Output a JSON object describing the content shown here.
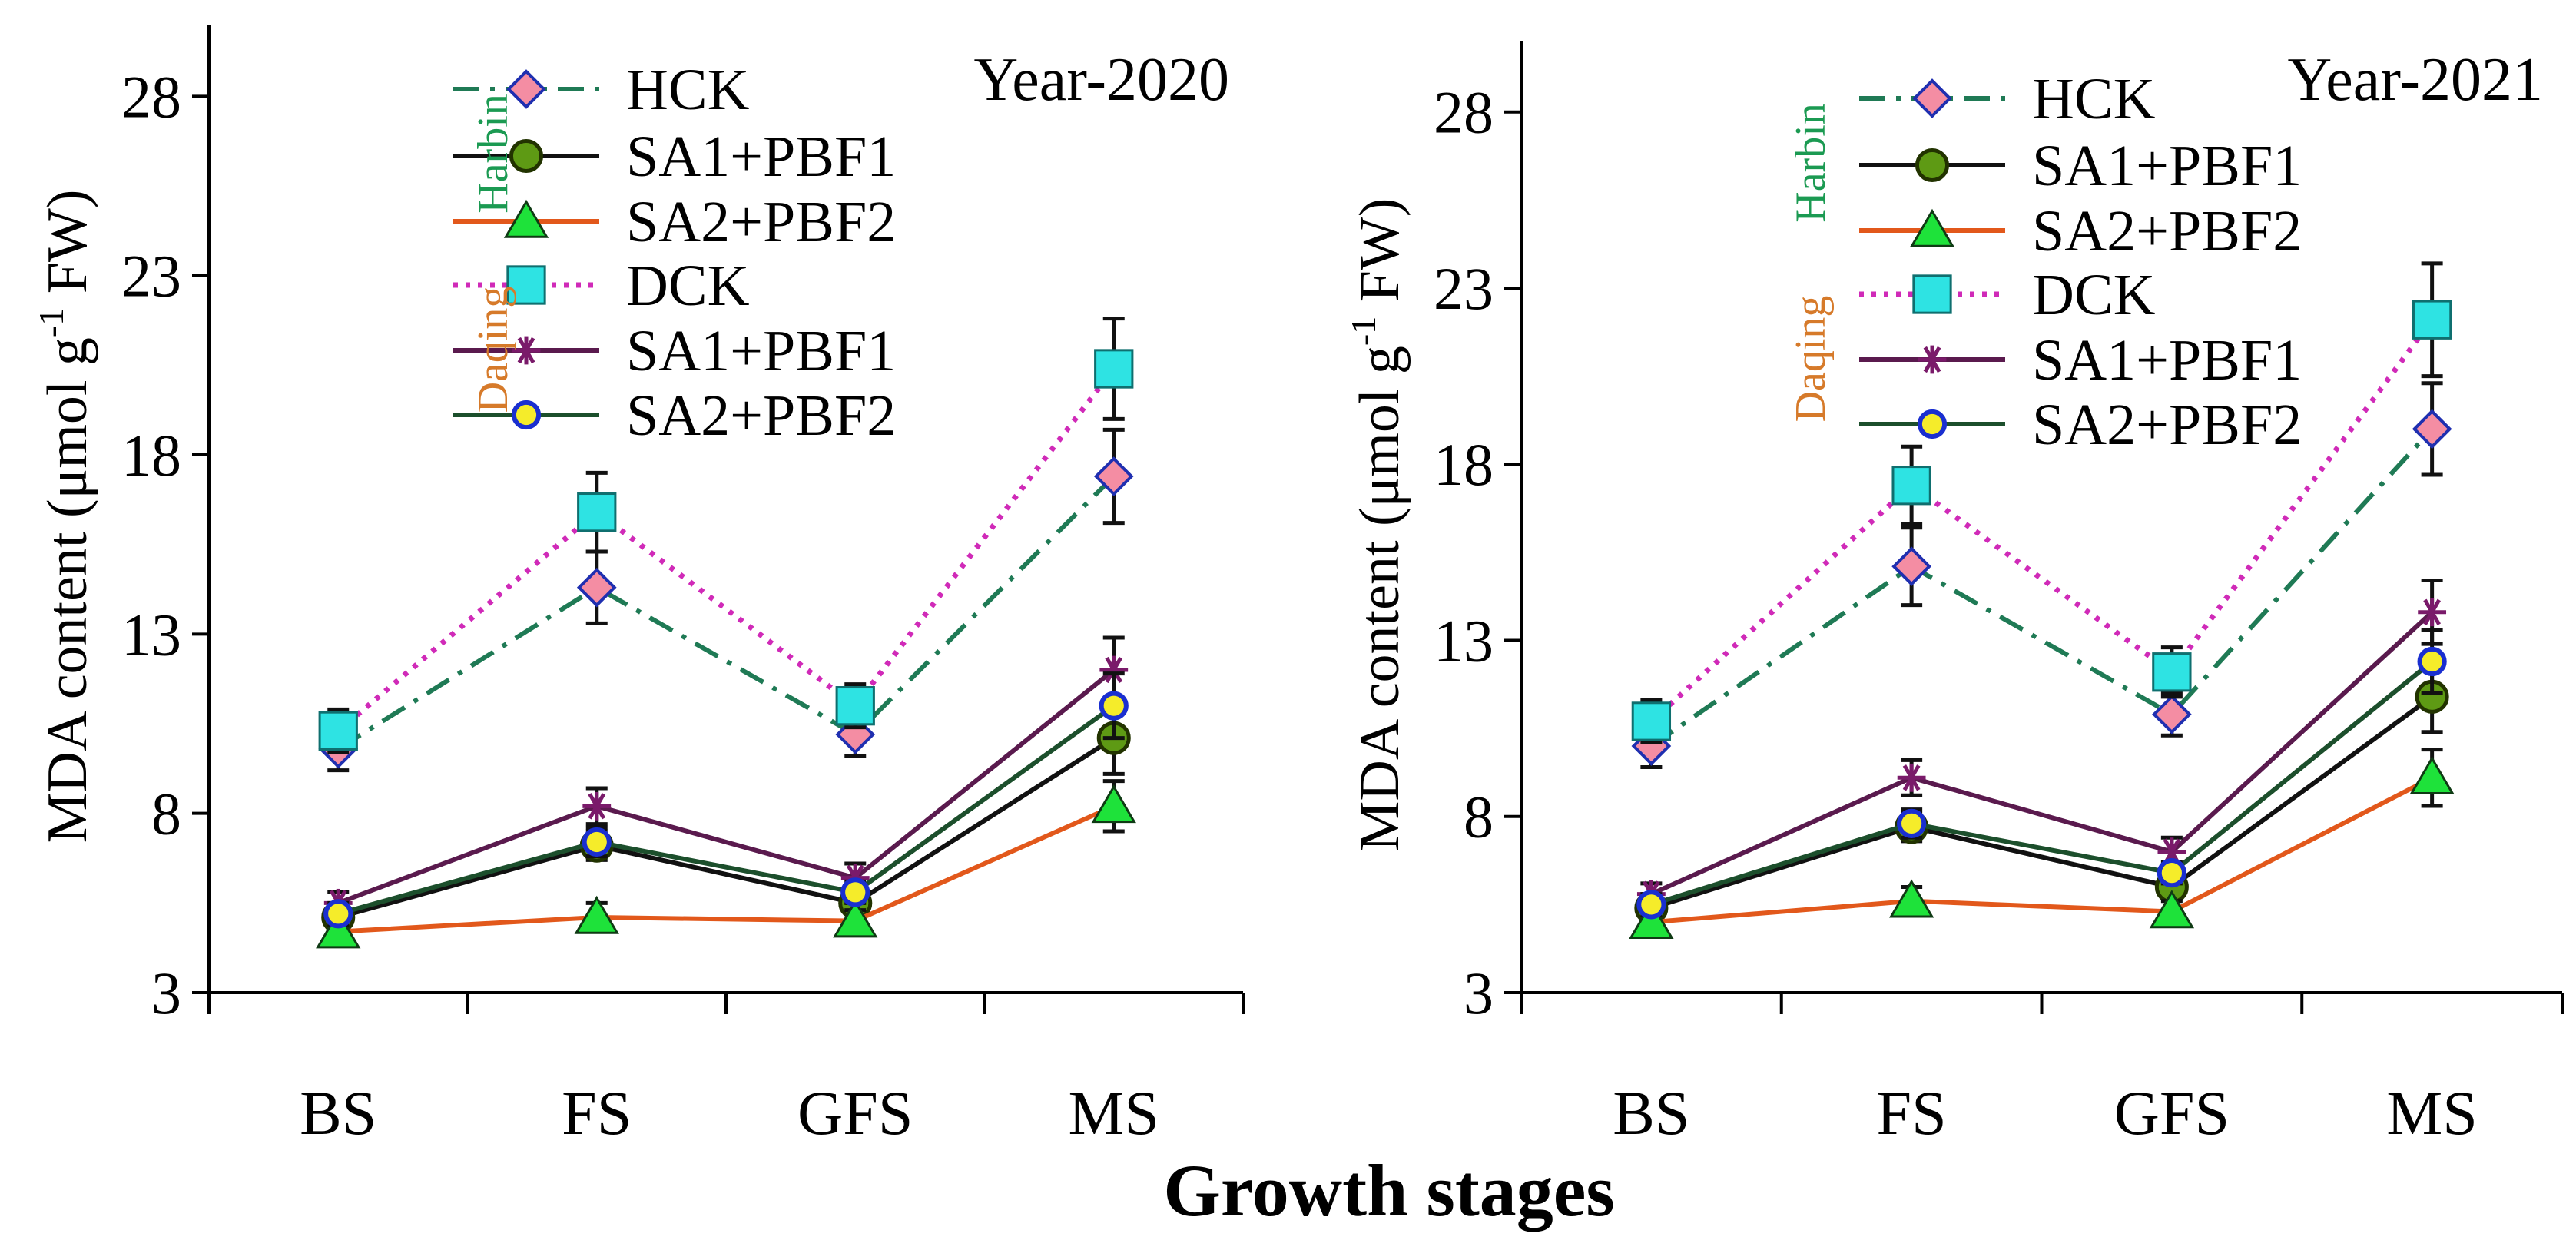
{
  "figure": {
    "shared_xlabel": "Growth stages"
  },
  "colors": {
    "HCK": "#1f7a55",
    "SA1_PBF1_H": "#111111",
    "SA2_PBF2_H": "#e2581b",
    "DCK": "#d02ab8",
    "SA1_PBF1_D": "#5a1a4e",
    "SA2_PBF2_D": "#1c4f2c",
    "harbin_label": "#1b9a52",
    "daqing_label": "#d67a2a",
    "diamond_fill": "#f48da3",
    "circle_fill": "#5e9a14",
    "triangle_fill": "#1ee23a",
    "square_fill": "#2ee3e3",
    "star_color": "#7a1a6a",
    "ring_fill": "#f5ec2a",
    "ring_edge": "#1a2fd0"
  },
  "chart_data": [
    {
      "type": "line",
      "title": "Year-2020",
      "ylabel": "MDA content (μmol g-1 FW)",
      "ylabel_parts": {
        "before": "MDA content (μmol g",
        "sup": "-1",
        "after": " FW)"
      },
      "xlabel": "Growth stages",
      "categories": [
        "BS",
        "FS",
        "GFS",
        "MS"
      ],
      "ylim": [
        3,
        30
      ],
      "yticks": [
        3,
        8,
        13,
        18,
        23,
        28
      ],
      "legend_groups": [
        "Harbin",
        "Daqing"
      ],
      "series": [
        {
          "key": "HCK",
          "name": "HCK",
          "group": "Harbin",
          "marker": "diamond",
          "line": "dashdot",
          "values": [
            9.8,
            14.3,
            10.2,
            17.4
          ],
          "errors": [
            0.6,
            1.0,
            0.6,
            1.3
          ]
        },
        {
          "key": "SA1_PBF1_H",
          "name": "SA1+PBF1",
          "group": "Harbin",
          "marker": "circle",
          "line": "solid",
          "values": [
            5.1,
            7.1,
            5.5,
            10.1
          ],
          "errors": [
            0.3,
            0.4,
            0.3,
            1.0
          ]
        },
        {
          "key": "SA2_PBF2_H",
          "name": "SA2+PBF2",
          "group": "Harbin",
          "marker": "triangle",
          "line": "solid",
          "values": [
            4.7,
            5.1,
            5.0,
            8.2
          ],
          "errors": [
            0.3,
            0.4,
            0.3,
            0.7
          ]
        },
        {
          "key": "DCK",
          "name": "DCK",
          "group": "Daqing",
          "marker": "square",
          "line": "dotted",
          "values": [
            10.3,
            16.4,
            11.0,
            20.4
          ],
          "errors": [
            0.6,
            1.1,
            0.6,
            1.4
          ]
        },
        {
          "key": "SA1_PBF1_D",
          "name": "SA1+PBF1",
          "group": "Daqing",
          "marker": "star",
          "line": "solid",
          "values": [
            5.5,
            8.2,
            6.2,
            12.0
          ],
          "errors": [
            0.3,
            0.5,
            0.4,
            0.9
          ]
        },
        {
          "key": "SA2_PBF2_D",
          "name": "SA2+PBF2",
          "group": "Daqing",
          "marker": "ring",
          "line": "solid",
          "values": [
            5.2,
            7.2,
            5.8,
            11.0
          ],
          "errors": [
            0.3,
            0.4,
            0.3,
            0.9
          ]
        }
      ]
    },
    {
      "type": "line",
      "title": "Year-2021",
      "ylabel": "MDA content (μmol g-1 FW)",
      "ylabel_parts": {
        "before": "MDA content (μmol g",
        "sup": "-1",
        "after": " FW)"
      },
      "xlabel": "Growth stages",
      "categories": [
        "BS",
        "FS",
        "GFS",
        "MS"
      ],
      "ylim": [
        3,
        30
      ],
      "yticks": [
        3,
        8,
        13,
        18,
        23,
        28
      ],
      "legend_groups": [
        "Harbin",
        "Daqing"
      ],
      "series": [
        {
          "key": "HCK",
          "name": "HCK",
          "group": "Harbin",
          "marker": "diamond",
          "line": "dashdot",
          "values": [
            10.0,
            15.1,
            10.9,
            19.0
          ],
          "errors": [
            0.6,
            1.1,
            0.6,
            1.3
          ]
        },
        {
          "key": "SA1_PBF1_H",
          "name": "SA1+PBF1",
          "group": "Harbin",
          "marker": "circle",
          "line": "solid",
          "values": [
            5.4,
            7.7,
            6.0,
            11.4
          ],
          "errors": [
            0.3,
            0.4,
            0.3,
            1.0
          ]
        },
        {
          "key": "SA2_PBF2_H",
          "name": "SA2+PBF2",
          "group": "Harbin",
          "marker": "triangle",
          "line": "solid",
          "values": [
            5.0,
            5.6,
            5.3,
            9.1
          ],
          "errors": [
            0.3,
            0.4,
            0.3,
            0.8
          ]
        },
        {
          "key": "DCK",
          "name": "DCK",
          "group": "Daqing",
          "marker": "square",
          "line": "dotted",
          "values": [
            10.7,
            17.4,
            12.1,
            22.1
          ],
          "errors": [
            0.6,
            1.1,
            0.7,
            1.6
          ]
        },
        {
          "key": "SA1_PBF1_D",
          "name": "SA1+PBF1",
          "group": "Daqing",
          "marker": "star",
          "line": "solid",
          "values": [
            5.8,
            9.1,
            7.0,
            13.8
          ],
          "errors": [
            0.3,
            0.5,
            0.4,
            0.9
          ]
        },
        {
          "key": "SA2_PBF2_D",
          "name": "SA2+PBF2",
          "group": "Daqing",
          "marker": "ring",
          "line": "solid",
          "values": [
            5.5,
            7.8,
            6.4,
            12.4
          ],
          "errors": [
            0.3,
            0.4,
            0.3,
            0.9
          ]
        }
      ]
    }
  ]
}
